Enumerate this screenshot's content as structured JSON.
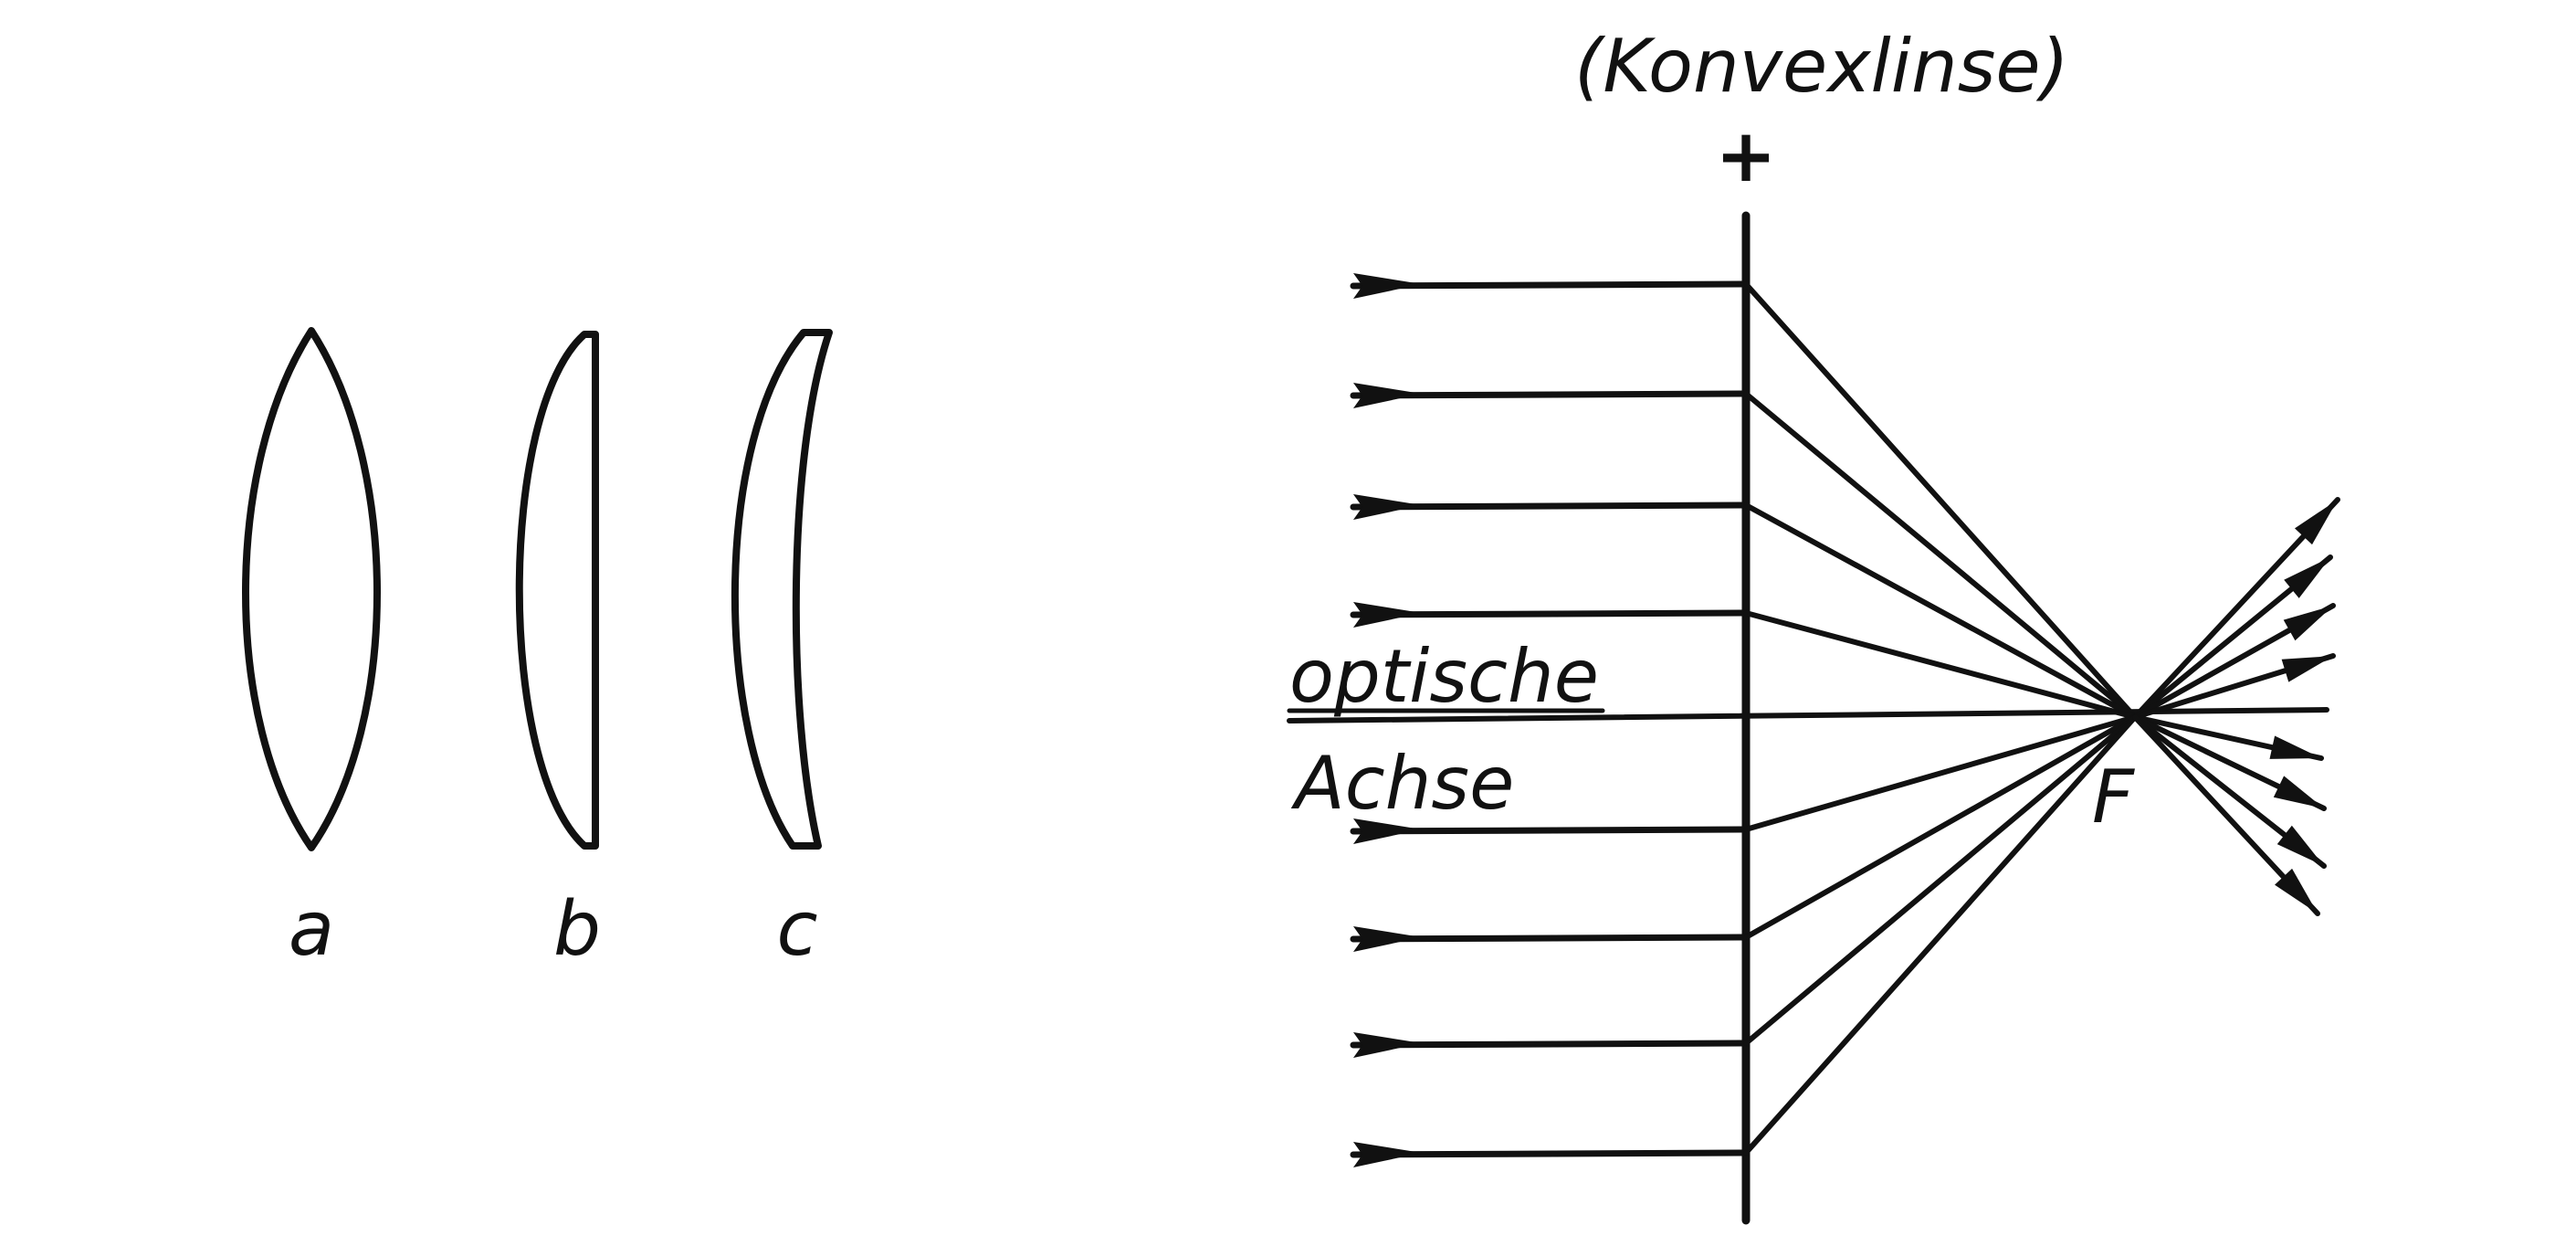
{
  "lenses": [
    {
      "label": "a",
      "kind": "biconvex"
    },
    {
      "label": "b",
      "kind": "plano-convex"
    },
    {
      "label": "c",
      "kind": "concavo-convex"
    }
  ],
  "convex_lens": {
    "title": "(Konvexlinse)",
    "sign": "+",
    "axis_label_line1": "optische",
    "axis_label_line2": "Achse",
    "focus_label": "F"
  },
  "ink_color": "#111111",
  "background_color": "#ffffff"
}
